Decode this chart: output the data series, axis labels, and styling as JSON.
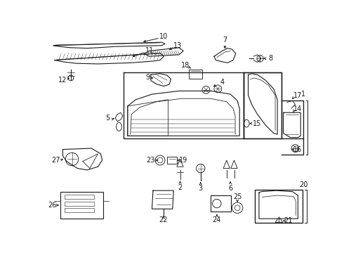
{
  "bg_color": "#ffffff",
  "line_color": "#1a1a1a",
  "gray": "#555555",
  "fig_w": 4.9,
  "fig_h": 3.6,
  "dpi": 100
}
